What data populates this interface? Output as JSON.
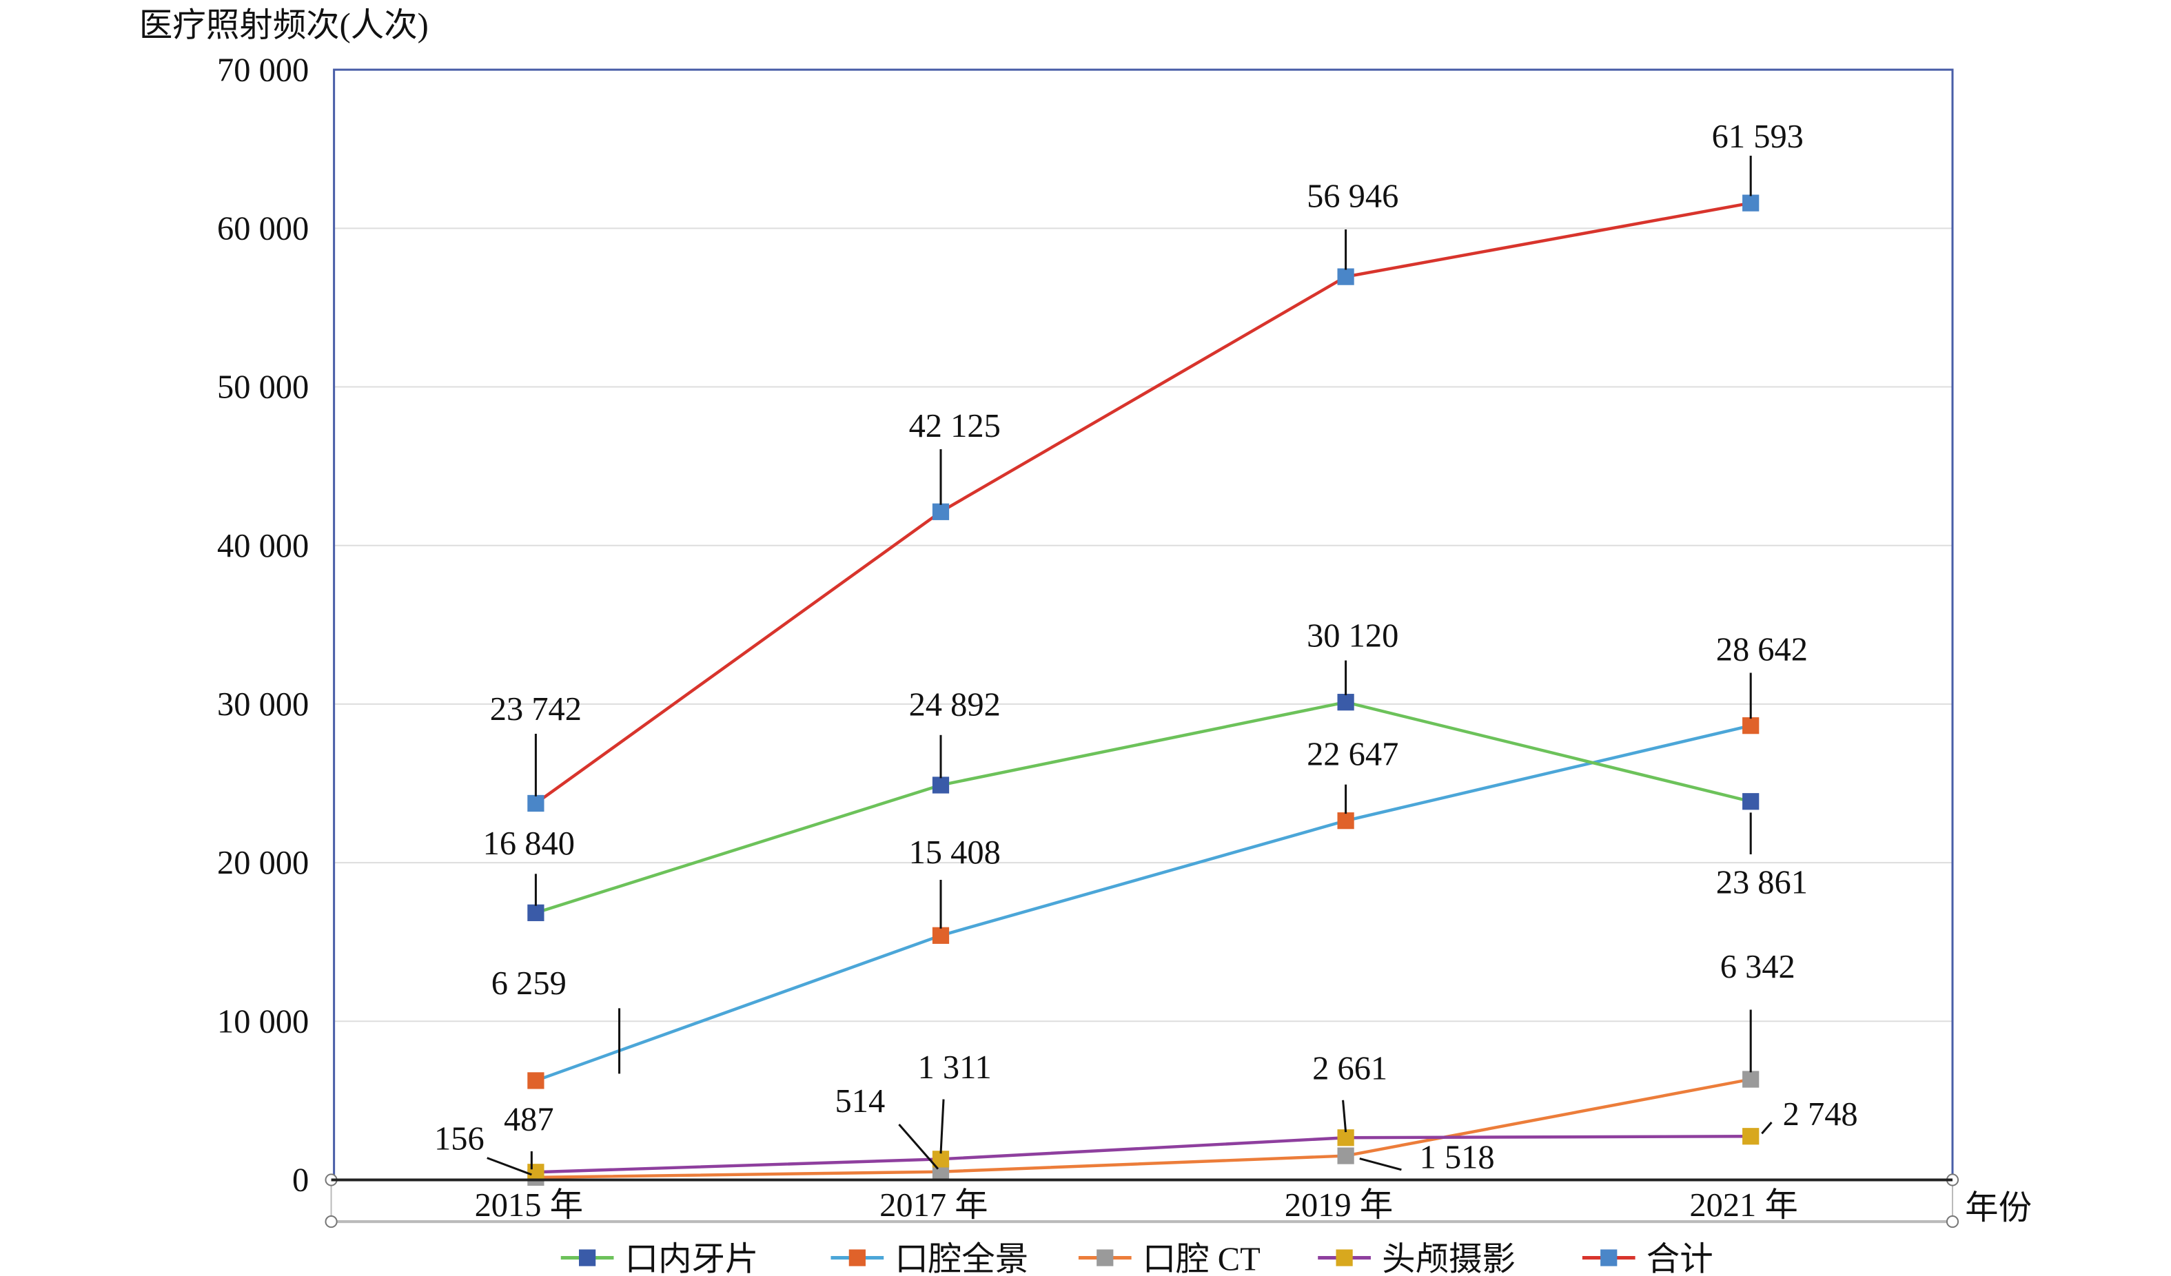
{
  "chart_data": {
    "type": "line",
    "title": "",
    "ylabel": "医疗照射频次(人次)",
    "xlabel": "年份",
    "categories": [
      "2015 年",
      "2017 年",
      "2019 年",
      "2021 年"
    ],
    "ylim": [
      0,
      70000
    ],
    "yticks": [
      0,
      10000,
      20000,
      30000,
      40000,
      50000,
      60000,
      70000
    ],
    "ytick_labels": [
      "0",
      "10 000",
      "20 000",
      "30 000",
      "40 000",
      "50 000",
      "60 000",
      "70 000"
    ],
    "grid": true,
    "legend_position": "bottom",
    "series": [
      {
        "name": "口内牙片",
        "values": [
          16840,
          24892,
          30120,
          23861
        ],
        "labels": [
          "16 840",
          "24 892",
          "30 120",
          "23 861"
        ],
        "line_color": "#6cc25a",
        "marker_color": "#3a5ba8"
      },
      {
        "name": "口腔全景",
        "values": [
          6259,
          15408,
          22647,
          28642
        ],
        "labels": [
          "6 259",
          "15 408",
          "22 647",
          "28 642"
        ],
        "line_color": "#4ba6d8",
        "marker_color": "#e0622a"
      },
      {
        "name": "口腔 CT",
        "values": [
          156,
          514,
          1518,
          6342
        ],
        "labels": [
          "156",
          "514",
          "1 518",
          "6 342"
        ],
        "line_color": "#ec7d3a",
        "marker_color": "#9a9a9a"
      },
      {
        "name": "头颅摄影",
        "values": [
          487,
          1311,
          2661,
          2748
        ],
        "labels": [
          "487",
          "1 311",
          "2 661",
          "2 748"
        ],
        "line_color": "#8e3f9e",
        "marker_color": "#d8a81e"
      },
      {
        "name": "合计",
        "values": [
          23742,
          42125,
          56946,
          61593
        ],
        "labels": [
          "23 742",
          "42 125",
          "56 946",
          "61 593"
        ],
        "line_color": "#d8342c",
        "marker_color": "#4a86c8"
      }
    ]
  }
}
